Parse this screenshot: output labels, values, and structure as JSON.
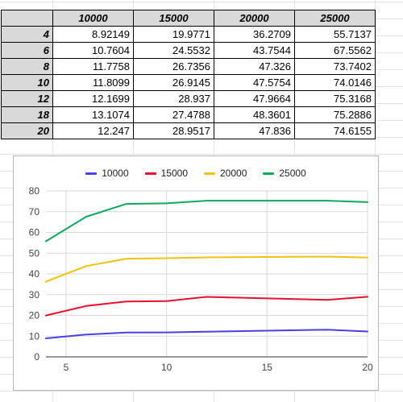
{
  "table": {
    "columns": [
      "10000",
      "15000",
      "20000",
      "25000"
    ],
    "rows": [
      {
        "label": "4",
        "cells": [
          "8.92149",
          "19.9771",
          "36.2709",
          "55.7137"
        ]
      },
      {
        "label": "6",
        "cells": [
          "10.7604",
          "24.5532",
          "43.7544",
          "67.5562"
        ]
      },
      {
        "label": "8",
        "cells": [
          "11.7758",
          "26.7356",
          "47.326",
          "73.7402"
        ]
      },
      {
        "label": "10",
        "cells": [
          "11.8099",
          "26.9145",
          "47.5754",
          "74.0146"
        ]
      },
      {
        "label": "12",
        "cells": [
          "12.1699",
          "28.937",
          "47.9664",
          "75.3168"
        ]
      },
      {
        "label": "18",
        "cells": [
          "13.1074",
          "27.4788",
          "48.3601",
          "75.2886"
        ]
      },
      {
        "label": "20",
        "cells": [
          "12.247",
          "28.9517",
          "47.836",
          "74.6155"
        ]
      }
    ]
  },
  "chart_data": {
    "type": "line",
    "title": "",
    "xlabel": "",
    "ylabel": "",
    "x": [
      4,
      6,
      8,
      10,
      12,
      18,
      20
    ],
    "xlim": [
      4,
      20
    ],
    "ylim": [
      0,
      80
    ],
    "x_ticks": [
      5,
      10,
      15,
      20
    ],
    "y_ticks": [
      0,
      10,
      20,
      30,
      40,
      50,
      60,
      70,
      80
    ],
    "grid": true,
    "legend_position": "top",
    "series": [
      {
        "name": "10000",
        "color": "#4a42e0",
        "values": [
          8.92149,
          10.7604,
          11.7758,
          11.8099,
          12.1699,
          13.1074,
          12.247
        ]
      },
      {
        "name": "15000",
        "color": "#e8112d",
        "values": [
          19.9771,
          24.5532,
          26.7356,
          26.9145,
          28.937,
          27.4788,
          28.9517
        ]
      },
      {
        "name": "20000",
        "color": "#f4c20d",
        "values": [
          36.2709,
          43.7544,
          47.326,
          47.5754,
          47.9664,
          48.3601,
          47.836
        ]
      },
      {
        "name": "25000",
        "color": "#11a85a",
        "values": [
          55.7137,
          67.5562,
          73.7402,
          74.0146,
          75.3168,
          75.2886,
          74.6155
        ]
      }
    ]
  }
}
